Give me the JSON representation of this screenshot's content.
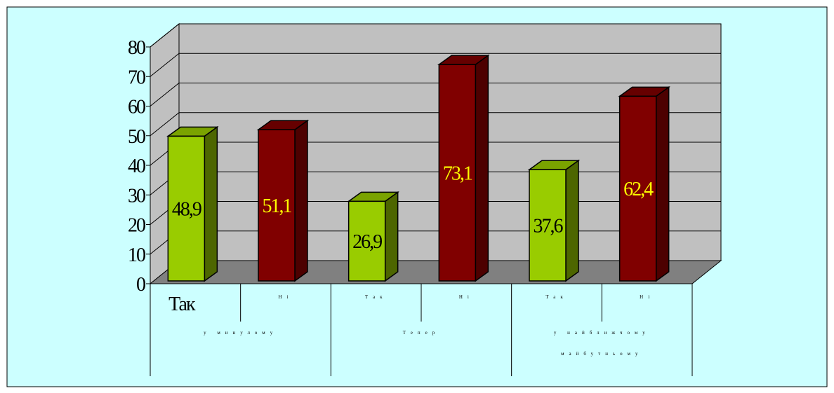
{
  "chart_data": {
    "type": "bar",
    "y_ticks": [
      "80",
      "70",
      "60",
      "50",
      "40",
      "30",
      "20",
      "10",
      "0"
    ],
    "ylim": [
      0,
      80
    ],
    "grid": true,
    "legend": "none",
    "groups": [
      {
        "label": "у минулому",
        "bars": [
          {
            "category": "Так",
            "value": 48.9,
            "label": "48,9",
            "color": "green"
          },
          {
            "category": "Ні",
            "value": 51.1,
            "label": "51,1",
            "color": "red"
          }
        ]
      },
      {
        "label": "Тепер",
        "bars": [
          {
            "category": "Так",
            "value": 26.9,
            "label": "26,9",
            "color": "green"
          },
          {
            "category": "Ні",
            "value": 73.1,
            "label": "73,1",
            "color": "red"
          }
        ]
      },
      {
        "label": "у найближчому майбутньому",
        "bars": [
          {
            "category": "Так",
            "value": 37.6,
            "label": "37,6",
            "color": "green"
          },
          {
            "category": "Ні",
            "value": 62.4,
            "label": "62,4",
            "color": "red"
          }
        ]
      }
    ]
  },
  "colors": {
    "page_background": "#ccffff",
    "wall": "#c0c0c0",
    "floor": "#808080",
    "green_front": "#99cc00",
    "green_side": "#4d6600",
    "green_top": "#7aa300",
    "green_label": "#000000",
    "red_front": "#800000",
    "red_side": "#4d0000",
    "red_top": "#660000",
    "red_label": "#ffff00"
  }
}
